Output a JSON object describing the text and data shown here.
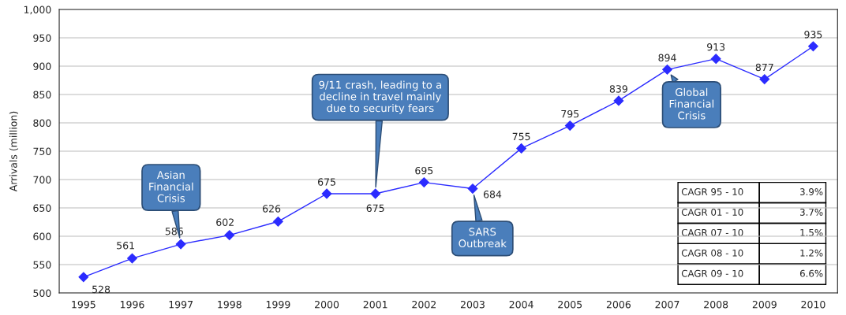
{
  "chart_data": {
    "type": "line",
    "ylabel": "Arrivals (million)",
    "categories": [
      "1995",
      "1996",
      "1997",
      "1998",
      "1999",
      "2000",
      "2001",
      "2002",
      "2003",
      "2004",
      "2005",
      "2006",
      "2007",
      "2008",
      "2009",
      "2010"
    ],
    "series": [
      {
        "color": "#2b2bff",
        "values": [
          528,
          561,
          586,
          602,
          626,
          675,
          675,
          695,
          684,
          755,
          795,
          839,
          894,
          913,
          877,
          935
        ]
      }
    ],
    "ylim": [
      500,
      1000
    ],
    "yticks": [
      500,
      550,
      600,
      650,
      700,
      750,
      800,
      850,
      900,
      950,
      {
        "value": 1000,
        "label": "1,000"
      }
    ],
    "grid": "y",
    "marker": "diamond",
    "line_style": "solid",
    "data_labels": true,
    "legend": false,
    "annotations": [
      {
        "text": "Asian\nFinancial\nCrisis",
        "x": "1997",
        "y": 586
      },
      {
        "text": "9/11 crash, leading to a\ndecline in travel mainly\ndue to security fears",
        "x": "2001",
        "y": 675
      },
      {
        "text": "SARS\nOutbreak",
        "x": "2003",
        "y": 684
      },
      {
        "text": "Global\nFinancial\nCrisis",
        "x": "2007",
        "y": 894
      },
      "CAGR 95 - 10",
      "3.9%",
      "CAGR 01 - 10",
      "3.7%",
      "CAGR 07 - 10",
      "1.5%",
      "CAGR 08 - 10",
      "1.2%",
      "CAGR 09 - 10",
      "6.6%"
    ]
  }
}
